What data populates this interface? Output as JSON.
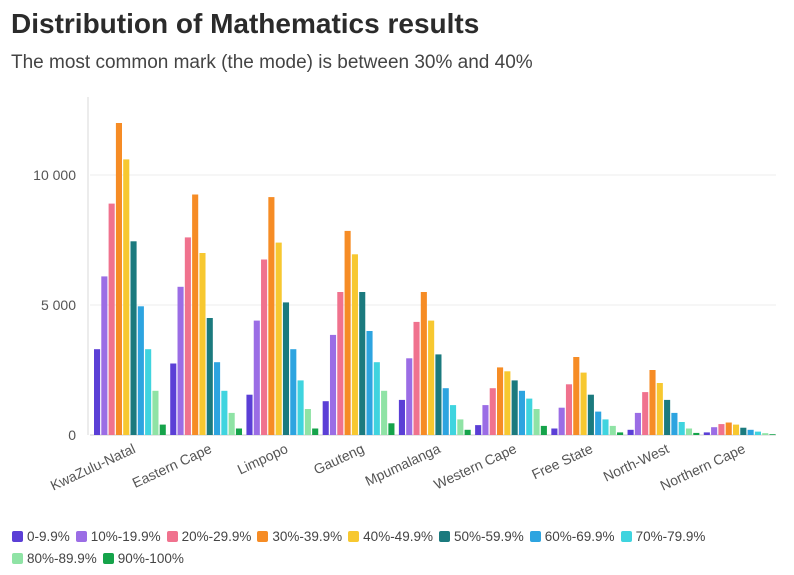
{
  "title": "Distribution of Mathematics results",
  "subtitle": "The most common mark (the mode) is between 30% and 40%",
  "chart_data": {
    "type": "bar",
    "title": "Distribution of Mathematics results",
    "subtitle": "The most common mark (the mode) is between 30% and 40%",
    "xlabel": "",
    "ylabel": "",
    "ylim": [
      0,
      12500
    ],
    "yticks": [
      0,
      5000,
      10000
    ],
    "ytick_labels": [
      "0",
      "5 000",
      "10 000"
    ],
    "grid": true,
    "legend_position": "bottom",
    "categories": [
      "KwaZulu-Natal",
      "Eastern Cape",
      "Limpopo",
      "Gauteng",
      "Mpumalanga",
      "Western Cape",
      "Free State",
      "North-West",
      "Northern Cape"
    ],
    "series": [
      {
        "name": "0-9.9%",
        "color": "#5b3fd6",
        "values": [
          3300,
          2750,
          1550,
          1300,
          1350,
          380,
          250,
          200,
          100
        ]
      },
      {
        "name": "10%-19.9%",
        "color": "#9b6de5",
        "values": [
          6100,
          5700,
          4400,
          3850,
          2950,
          1150,
          1050,
          850,
          300
        ]
      },
      {
        "name": "20%-29.9%",
        "color": "#f0728e",
        "values": [
          8900,
          7600,
          6750,
          5500,
          4350,
          1800,
          1950,
          1650,
          420
        ]
      },
      {
        "name": "30%-39.9%",
        "color": "#f68c25",
        "values": [
          12000,
          9250,
          9150,
          7850,
          5500,
          2600,
          3000,
          2500,
          480
        ]
      },
      {
        "name": "40%-49.9%",
        "color": "#f7c830",
        "values": [
          10600,
          7000,
          7400,
          6950,
          4400,
          2450,
          2400,
          2000,
          400
        ]
      },
      {
        "name": "50%-59.9%",
        "color": "#1b7a7e",
        "values": [
          7450,
          4500,
          5100,
          5500,
          3100,
          2100,
          1550,
          1350,
          280
        ]
      },
      {
        "name": "60%-69.9%",
        "color": "#2da4e0",
        "values": [
          4950,
          2800,
          3300,
          4000,
          1800,
          1700,
          900,
          850,
          200
        ]
      },
      {
        "name": "70%-79.9%",
        "color": "#3fd4df",
        "values": [
          3300,
          1700,
          2100,
          2800,
          1150,
          1400,
          600,
          500,
          130
        ]
      },
      {
        "name": "80%-89.9%",
        "color": "#8fe3a5",
        "values": [
          1700,
          850,
          1000,
          1700,
          600,
          1000,
          350,
          250,
          70
        ]
      },
      {
        "name": "90%-100%",
        "color": "#15a34a",
        "values": [
          400,
          250,
          250,
          450,
          200,
          350,
          100,
          80,
          30
        ]
      }
    ]
  }
}
